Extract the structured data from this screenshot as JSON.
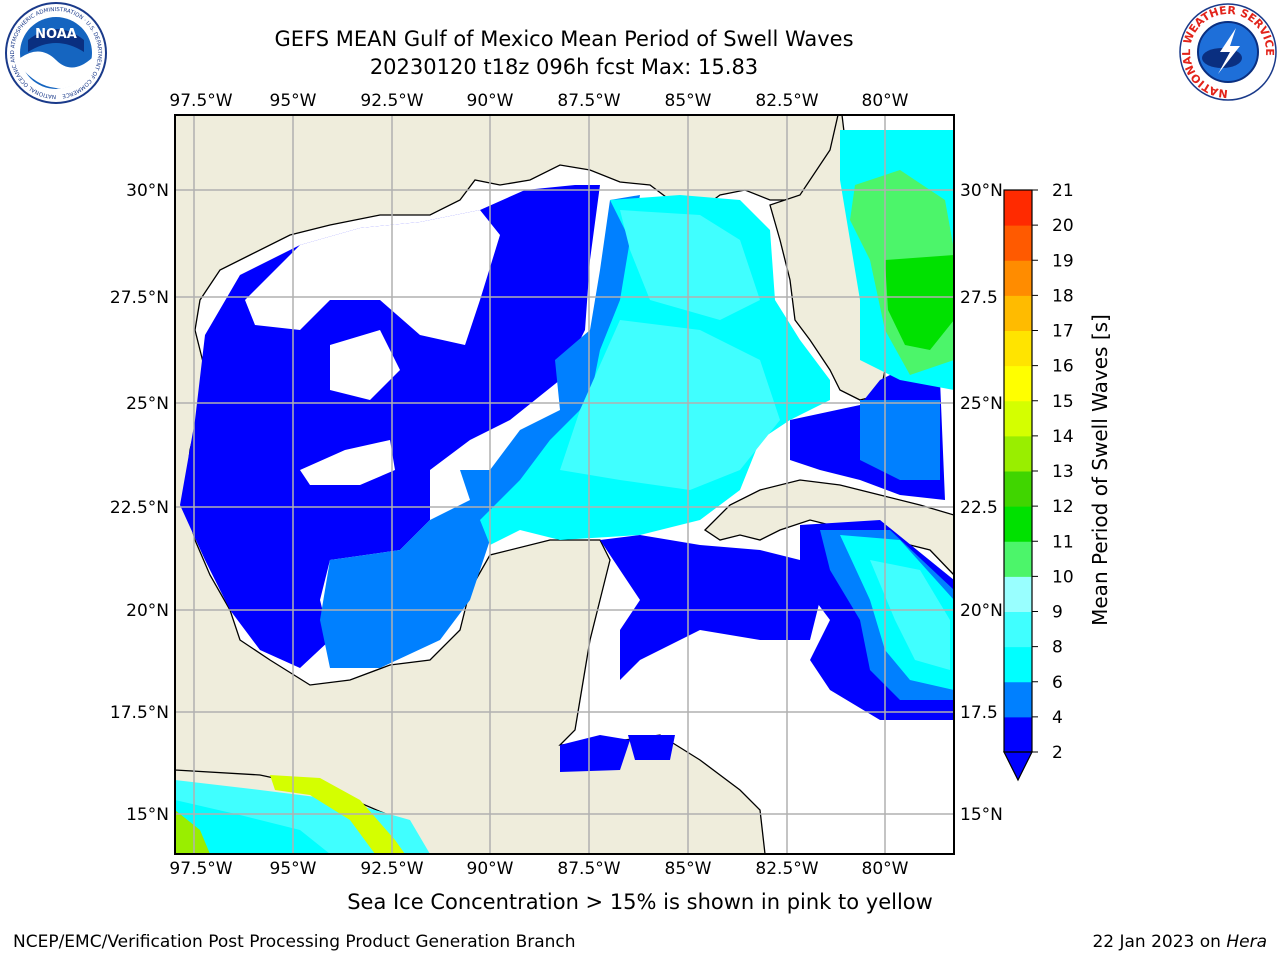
{
  "title": {
    "line1": "GEFS MEAN Gulf of Mexico Mean Period of Swell Waves",
    "line2": "20230120 t18z 096h fcst   Max: 15.83"
  },
  "logos": {
    "left": {
      "text": "NOAA",
      "ring_text": "NATIONAL OCEANIC AND ATMOSPHERIC ADMINISTRATION · U.S. DEPARTMENT OF COMMERCE",
      "icon": "noaa-logo"
    },
    "right": {
      "ring_text": "NATIONAL WEATHER SERVICE",
      "icon": "nws-logo"
    }
  },
  "map": {
    "lon_labels": [
      "97.5°W",
      "95°W",
      "92.5°W",
      "90°W",
      "87.5°W",
      "85°W",
      "82.5°W",
      "80°W"
    ],
    "lat_labels_left": [
      "30°N",
      "27.5°N",
      "25°N",
      "22.5°N",
      "20°N",
      "17.5°N",
      "15°N"
    ],
    "lat_labels_right": [
      "30°N",
      "27.5",
      "25°N",
      "22.5",
      "20°N",
      "17.5",
      "15°N"
    ],
    "extent": {
      "lon": [
        -98.0,
        -79.0
      ],
      "lat": [
        14.0,
        31.8
      ]
    },
    "land_color": "#efeddc",
    "gridline_color": "#b0b0b0"
  },
  "colorbar": {
    "label": "Mean Period of Swell Waves [s]",
    "ticks": [
      "21",
      "20",
      "19",
      "18",
      "17",
      "16",
      "15",
      "14",
      "13",
      "12",
      "11",
      "10",
      "9",
      "8",
      "6",
      "4",
      "2"
    ],
    "levels": [
      2,
      4,
      6,
      8,
      9,
      10,
      11,
      12,
      13,
      14,
      15,
      16,
      17,
      18,
      19,
      20,
      21
    ],
    "colors": [
      "#0000ff",
      "#0080ff",
      "#00ffff",
      "#40ffff",
      "#99ffff",
      "#4cf56a",
      "#00e100",
      "#40d500",
      "#99ee00",
      "#d4ff00",
      "#ffff00",
      "#ffe400",
      "#ffbb00",
      "#ff8c00",
      "#ff5a00",
      "#ff2a00",
      "#ff0000"
    ]
  },
  "footer": {
    "note": "Sea Ice Concentration > 15% is shown in pink to yellow",
    "left": "NCEP/EMC/Verification Post Processing Product Generation Branch",
    "right_prefix": "22 Jan 2023 on ",
    "right_host": "Hera"
  }
}
